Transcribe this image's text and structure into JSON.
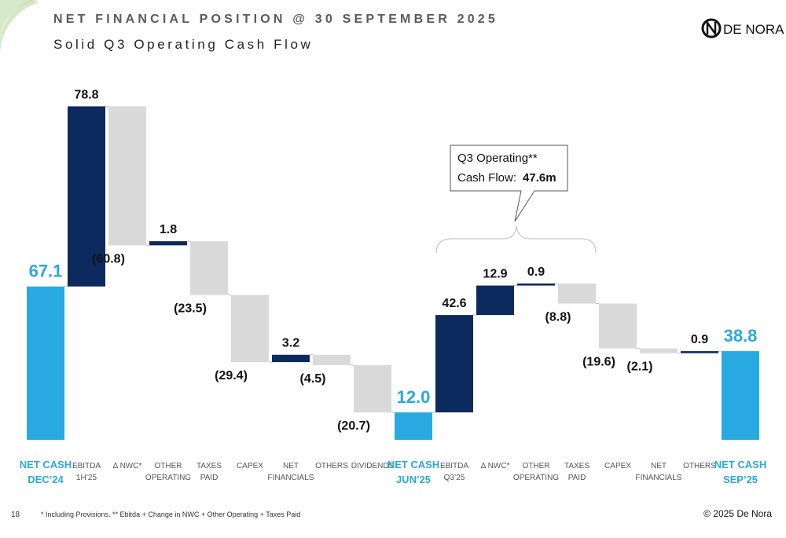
{
  "header": {
    "title": "NET FINANCIAL POSITION @ 30 SEPTEMBER 2025",
    "subtitle": "Solid Q3 Operating Cash Flow",
    "logo": "DE NORA"
  },
  "chart_data": {
    "type": "waterfall",
    "categories": [
      [
        "NET CASH",
        "DEC’24"
      ],
      [
        "EBITDA",
        "1H’25"
      ],
      [
        "Δ NWC*"
      ],
      [
        "OTHER",
        "OPERATING"
      ],
      [
        "TAXES",
        "PAID"
      ],
      [
        "CAPEX"
      ],
      [
        "NET",
        "FINANCIALS"
      ],
      [
        "OTHERS"
      ],
      [
        "DIVIDENDS"
      ],
      [
        "NET CASH",
        "JUN’25"
      ],
      [
        "EBITDA",
        "Q3’25"
      ],
      [
        "Δ NWC*"
      ],
      [
        "OTHER",
        "OPERATING"
      ],
      [
        "TAXES",
        "PAID"
      ],
      [
        "CAPEX"
      ],
      [
        "NET",
        "FINANCIALS"
      ],
      [
        "OTHERS"
      ],
      [
        "NET CASH",
        "SEP’25"
      ]
    ],
    "values": [
      67.1,
      78.8,
      -60.8,
      1.8,
      -23.5,
      -29.4,
      3.2,
      -4.5,
      -20.7,
      12.0,
      42.6,
      12.9,
      0.9,
      -8.8,
      -19.6,
      -2.1,
      0.9,
      38.8
    ],
    "value_labels": [
      "67.1",
      "78.8",
      "(60.8)",
      "1.8",
      "(23.5)",
      "(29.4)",
      "3.2",
      "(4.5)",
      "(20.7)",
      "12.0",
      "42.6",
      "12.9",
      "0.9",
      "(8.8)",
      "(19.6)",
      "(2.1)",
      "0.9",
      "38.8"
    ],
    "is_total": [
      true,
      false,
      false,
      false,
      false,
      false,
      false,
      false,
      false,
      true,
      false,
      false,
      false,
      false,
      false,
      false,
      false,
      true
    ],
    "colors": {
      "total": "#29a9e1",
      "increase": "#0d2a5e",
      "decrease": "#d9d9d9"
    },
    "annotation": {
      "line1": "Q3 Operating**",
      "line2_label": "Cash Flow:",
      "line2_value": "47.6m"
    }
  },
  "footer": {
    "page": "18",
    "note": "* Including Provisions. ** Ebitda + Change in NWC + Other Operating + Taxes Paid",
    "copyright": "© 2025 De Nora"
  }
}
